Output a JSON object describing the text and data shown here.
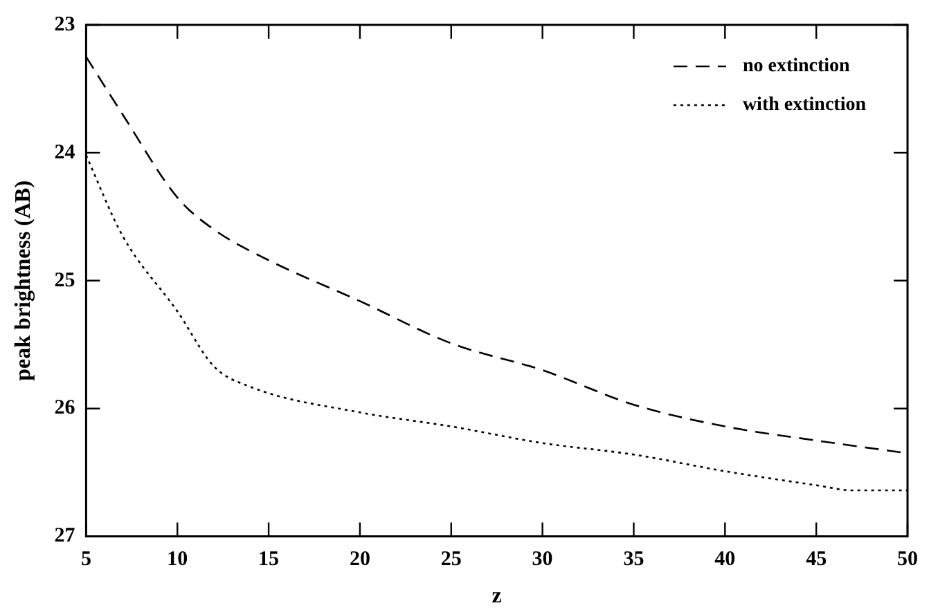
{
  "chart_data": {
    "type": "line",
    "xlabel": "z",
    "ylabel": "peak brightness (AB)",
    "x": [
      5,
      7,
      10,
      12,
      15,
      20,
      25,
      30,
      35,
      40,
      45,
      50
    ],
    "xlim": [
      5,
      50
    ],
    "xticks": [
      5,
      10,
      15,
      20,
      25,
      30,
      35,
      40,
      45,
      50
    ],
    "ylim": [
      27,
      23
    ],
    "yticks": [
      23,
      24,
      25,
      26,
      27
    ],
    "grid": false,
    "legend": "top right",
    "marker": "none",
    "series": [
      {
        "name": "no extinction",
        "color": "#000000",
        "line_style": "dashed",
        "values": [
          23.25,
          23.7,
          24.35,
          24.6,
          24.84,
          25.16,
          25.49,
          25.7,
          25.97,
          26.14,
          26.25,
          26.35
        ]
      },
      {
        "name": "with extinction",
        "color": "#000000",
        "line_style": "dotted",
        "x": [
          5,
          7,
          10,
          12,
          14,
          20,
          25,
          30,
          35,
          40,
          45,
          47,
          50
        ],
        "values": [
          24.02,
          24.65,
          25.24,
          25.67,
          25.83,
          26.03,
          26.14,
          26.27,
          26.36,
          26.49,
          26.6,
          26.64,
          26.64
        ]
      }
    ]
  }
}
